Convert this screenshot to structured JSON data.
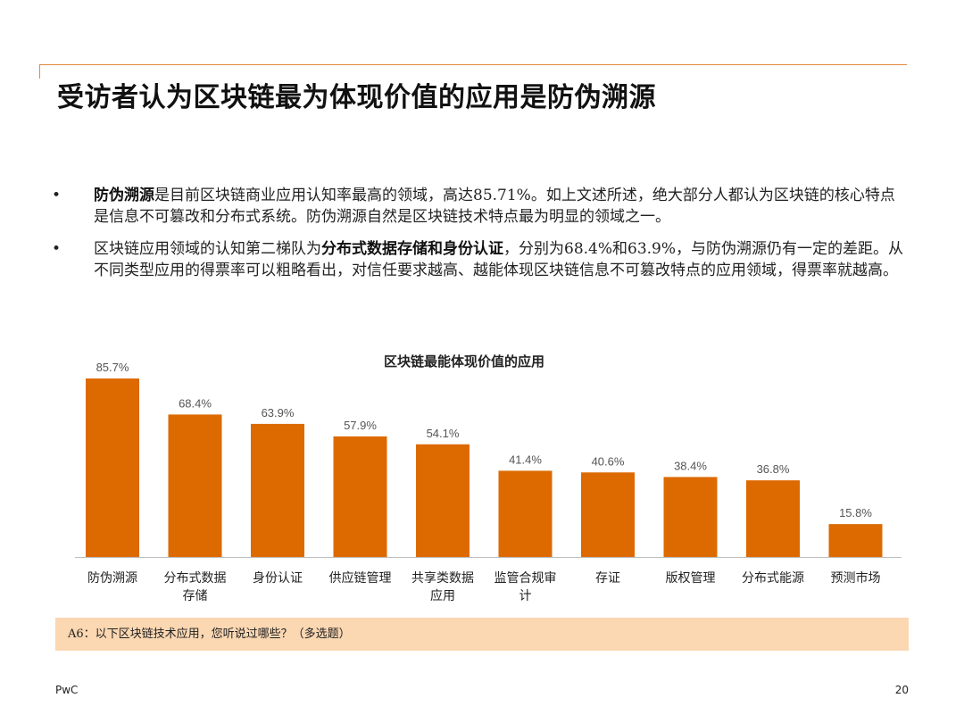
{
  "header": {
    "title": "受访者认为区块链最为体现价值的应用是防伪溯源"
  },
  "bullets": [
    {
      "pre": "",
      "bold": "防伪溯源",
      "post": "是目前区块链商业应用认知率最高的领域，高达85.71%。如上文述所述，绝大部分人都认为区块链的核心特点是信息不可篡改和分布式系统。防伪溯源自然是区块链技术特点最为明显的领域之一。"
    },
    {
      "pre": "区块链应用领域的认知第二梯队为",
      "bold": "分布式数据存储和身份认证",
      "post": "，分别为68.4%和63.9%，与防伪溯源仍有一定的差距。从不同类型应用的得票率可以粗略看出，对信任要求越高、越能体现区块链信息不可篡改特点的应用领域，得票率就越高。"
    }
  ],
  "chart_data": {
    "type": "bar",
    "title": "区块链最能体现价值的应用",
    "categories": [
      [
        "防伪溯源"
      ],
      [
        "分布式数据",
        "存储"
      ],
      [
        "身份认证"
      ],
      [
        "供应链管理"
      ],
      [
        "共享类数据",
        "应用"
      ],
      [
        "监管合规审",
        "计"
      ],
      [
        "存证"
      ],
      [
        "版权管理"
      ],
      [
        "分布式能源"
      ],
      [
        "预测市场"
      ]
    ],
    "values": [
      85.7,
      68.4,
      63.9,
      57.9,
      54.1,
      41.4,
      40.6,
      38.4,
      36.8,
      15.8
    ],
    "value_labels": [
      "85.7%",
      "68.4%",
      "63.9%",
      "57.9%",
      "54.1%",
      "41.4%",
      "40.6%",
      "38.4%",
      "36.8%",
      "15.8%"
    ],
    "bar_color": "#dd6a00",
    "ylim": [
      0,
      90
    ]
  },
  "note": {
    "text": "A6：以下区块链技术应用，您听说过哪些？（多选题）"
  },
  "footer": {
    "brand": "PwC",
    "page": "20"
  }
}
